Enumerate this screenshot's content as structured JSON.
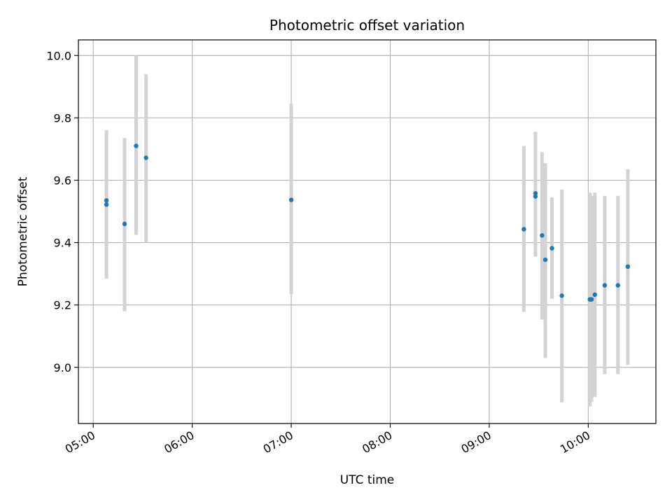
{
  "chart_data": {
    "type": "scatter",
    "title": "Photometric offset variation",
    "xlabel": "UTC time",
    "ylabel": "Photometric offset",
    "x_axis": "time",
    "xlim": [
      "04:51",
      "10:41"
    ],
    "ylim": [
      8.82,
      10.05
    ],
    "xticks": [
      "05:00",
      "06:00",
      "07:00",
      "08:00",
      "09:00",
      "10:00"
    ],
    "yticks": [
      9.0,
      9.2,
      9.4,
      9.6,
      9.8,
      10.0
    ],
    "ytick_labels": [
      "9.0",
      "9.2",
      "9.4",
      "9.6",
      "9.8",
      "10.0"
    ],
    "grid": true,
    "point_color": "#1f77b4",
    "errorbar_color": "#d3d3d3",
    "points": [
      {
        "x": "05:08",
        "y": 9.535,
        "ylow": 9.31,
        "yhigh": 9.74
      },
      {
        "x": "05:08",
        "y": 9.522,
        "ylow": 9.285,
        "yhigh": 9.76
      },
      {
        "x": "05:19",
        "y": 9.46,
        "ylow": 9.18,
        "yhigh": 9.735
      },
      {
        "x": "05:26",
        "y": 9.71,
        "ylow": 9.425,
        "yhigh": 10.0
      },
      {
        "x": "05:32",
        "y": 9.672,
        "ylow": 9.4,
        "yhigh": 9.94
      },
      {
        "x": "07:00",
        "y": 9.537,
        "ylow": 9.235,
        "yhigh": 9.845
      },
      {
        "x": "09:21",
        "y": 9.443,
        "ylow": 9.178,
        "yhigh": 9.71
      },
      {
        "x": "09:28",
        "y": 9.548,
        "ylow": 9.355,
        "yhigh": 9.74
      },
      {
        "x": "09:28",
        "y": 9.558,
        "ylow": 9.36,
        "yhigh": 9.755
      },
      {
        "x": "09:32",
        "y": 9.423,
        "ylow": 9.153,
        "yhigh": 9.69
      },
      {
        "x": "09:34",
        "y": 9.345,
        "ylow": 9.03,
        "yhigh": 9.655
      },
      {
        "x": "09:38",
        "y": 9.382,
        "ylow": 9.22,
        "yhigh": 9.545
      },
      {
        "x": "09:44",
        "y": 9.23,
        "ylow": 8.888,
        "yhigh": 9.57
      },
      {
        "x": "10:01",
        "y": 9.218,
        "ylow": 8.875,
        "yhigh": 9.56
      },
      {
        "x": "10:02",
        "y": 9.218,
        "ylow": 8.89,
        "yhigh": 9.55
      },
      {
        "x": "10:04",
        "y": 9.233,
        "ylow": 8.905,
        "yhigh": 9.56
      },
      {
        "x": "10:10",
        "y": 9.263,
        "ylow": 8.978,
        "yhigh": 9.55
      },
      {
        "x": "10:18",
        "y": 9.263,
        "ylow": 8.978,
        "yhigh": 9.55
      },
      {
        "x": "10:24",
        "y": 9.323,
        "ylow": 9.008,
        "yhigh": 9.635
      }
    ]
  }
}
